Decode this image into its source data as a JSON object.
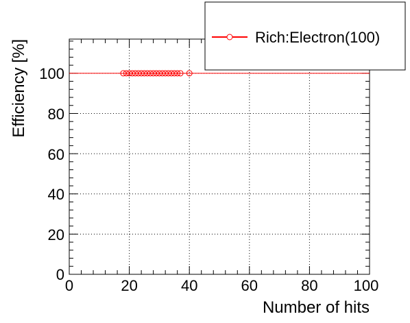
{
  "chart_data": {
    "type": "scatter",
    "xlabel": "Number of hits",
    "ylabel": "Efficiency [%]",
    "xlim": [
      0,
      100
    ],
    "ylim": [
      0,
      117
    ],
    "x_ticks": [
      "0",
      "20",
      "40",
      "60",
      "80",
      "100"
    ],
    "y_ticks": [
      "0",
      "20",
      "40",
      "60",
      "80",
      "100"
    ],
    "grid": true,
    "legend_placement": "top-right",
    "series": [
      {
        "name": "Rich:Electron(100)",
        "color": "#ff0000",
        "marker": "open-circle",
        "horizontal_line_at": 100,
        "x": [
          18,
          19,
          20,
          21,
          22,
          23,
          24,
          25,
          26,
          27,
          28,
          29,
          30,
          31,
          32,
          33,
          34,
          35,
          36,
          37,
          40
        ],
        "y": [
          100,
          100,
          100,
          100,
          100,
          100,
          100,
          100,
          100,
          100,
          100,
          100,
          100,
          100,
          100,
          100,
          100,
          100,
          100,
          100,
          100
        ]
      }
    ]
  }
}
